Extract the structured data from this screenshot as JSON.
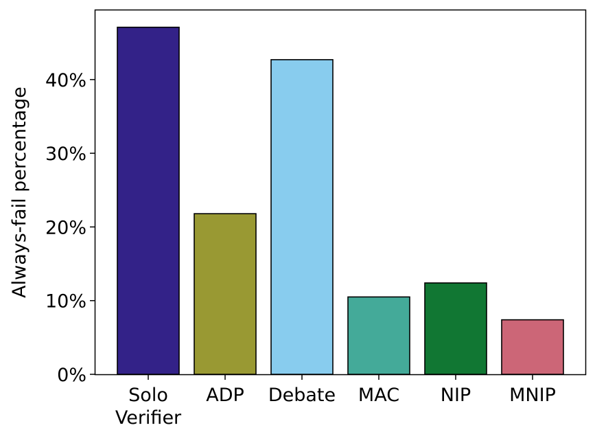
{
  "chart_data": {
    "type": "bar",
    "title": "",
    "xlabel": "",
    "ylabel": "Always-fail percentage",
    "categories": [
      [
        "Solo",
        "Verifier"
      ],
      [
        "ADP"
      ],
      [
        "Debate"
      ],
      [
        "MAC"
      ],
      [
        "NIP"
      ],
      [
        "MNIP"
      ]
    ],
    "values": [
      47.1,
      21.8,
      42.7,
      10.5,
      12.4,
      7.4
    ],
    "colors": [
      "#332288",
      "#999933",
      "#88CCEE",
      "#44AA99",
      "#117733",
      "#CC6677"
    ],
    "ylim": [
      0,
      49.4
    ],
    "yticks": [
      0,
      10,
      20,
      30,
      40
    ],
    "ytick_labels": [
      "0%",
      "10%",
      "20%",
      "30%",
      "40%"
    ],
    "grid": false,
    "legend": "none",
    "bar_edge_color": "#000000"
  }
}
